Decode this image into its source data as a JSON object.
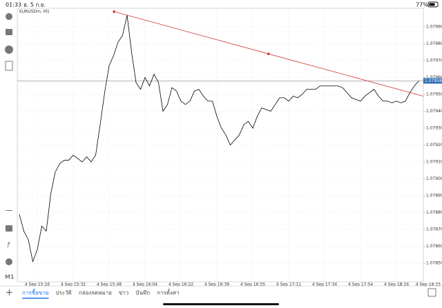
{
  "status_bar": {
    "time": "01:33",
    "date": "อ. 5 ก.ย.",
    "battery": "77%"
  },
  "chart_data": {
    "type": "line",
    "symbol": "EURUSDm, M1",
    "timeframe": "M1",
    "series": [
      {
        "name": "EURUSDm",
        "color": "#000000",
        "values": [
          1.07879,
          1.07869,
          1.07864,
          1.07851,
          1.07858,
          1.07872,
          1.07869,
          1.07891,
          1.07904,
          1.07909,
          1.07911,
          1.07911,
          1.07914,
          1.07912,
          1.0791,
          1.07913,
          1.0791,
          1.07914,
          1.07932,
          1.07951,
          1.07967,
          1.07973,
          1.07981,
          1.07985,
          1.07997,
          1.07975,
          1.07957,
          1.07953,
          1.0796,
          1.07955,
          1.07962,
          1.07957,
          1.0794,
          1.07944,
          1.07954,
          1.07952,
          1.07946,
          1.07944,
          1.07946,
          1.07952,
          1.07953,
          1.07949,
          1.07946,
          1.07946,
          1.07937,
          1.0793,
          1.07926,
          1.0792,
          1.07923,
          1.07926,
          1.07932,
          1.07934,
          1.0793,
          1.07937,
          1.07942,
          1.07941,
          1.0794,
          1.07944,
          1.07948,
          1.07948,
          1.07946,
          1.07949,
          1.07948,
          1.0795,
          1.07953,
          1.07953,
          1.07953,
          1.07955,
          1.07955,
          1.07955,
          1.07955,
          1.07955,
          1.07954,
          1.07951,
          1.07948,
          1.07947,
          1.07946,
          1.07949,
          1.07951,
          1.07953,
          1.07949,
          1.07946,
          1.07946,
          1.07945,
          1.07946,
          1.07945,
          1.07946,
          1.07951,
          1.07955,
          1.07958
        ]
      }
    ],
    "xlim": [
      0,
      90
    ],
    "xticks": [
      {
        "value": 4,
        "label": "4 Sep 15:16"
      },
      {
        "value": 12,
        "label": "4 Sep 15:32"
      },
      {
        "value": 20,
        "label": "4 Sep 15:48"
      },
      {
        "value": 28,
        "label": "4 Sep 16:04"
      },
      {
        "value": 36,
        "label": "4 Sep 16:22"
      },
      {
        "value": 44,
        "label": "4 Sep 16:39"
      },
      {
        "value": 52,
        "label": "4 Sep 16:55"
      },
      {
        "value": 60,
        "label": "4 Sep 17:11"
      },
      {
        "value": 68,
        "label": "4 Sep 17:34"
      },
      {
        "value": 76,
        "label": "4 Sep 17:54"
      },
      {
        "value": 84,
        "label": "4 Sep 18:16"
      },
      {
        "value": 92,
        "label": "4 Sep 18:33"
      }
    ],
    "ylim": [
      1.07839,
      1.08001
    ],
    "yticks": [
      {
        "value": 1.0799,
        "label": "1.07990"
      },
      {
        "value": 1.0798,
        "label": "1.07980"
      },
      {
        "value": 1.0797,
        "label": "1.07970"
      },
      {
        "value": 1.0796,
        "label": "1.07960"
      },
      {
        "value": 1.0795,
        "label": "1.07950"
      },
      {
        "value": 1.0794,
        "label": "1.07940"
      },
      {
        "value": 1.0793,
        "label": "1.07930"
      },
      {
        "value": 1.0792,
        "label": "1.07920"
      },
      {
        "value": 1.0791,
        "label": "1.07910"
      },
      {
        "value": 1.079,
        "label": "1.07900"
      },
      {
        "value": 1.0789,
        "label": "1.07890"
      },
      {
        "value": 1.0788,
        "label": "1.07880"
      },
      {
        "value": 1.0787,
        "label": "1.07870"
      },
      {
        "value": 1.0786,
        "label": "1.07860"
      },
      {
        "value": 1.0785,
        "label": "1.07850"
      }
    ],
    "grid": true,
    "current_price": 1.07958,
    "current_price_color": "#2f6fb5",
    "trendline": {
      "color": "#d32f2f",
      "points": [
        {
          "x": 21.1,
          "y": 1.07999
        },
        {
          "x": 55.5,
          "y": 1.07974
        }
      ]
    }
  },
  "tabs": [
    "การซื้อขาย",
    "ประวัติ",
    "กล่องจดหมาย",
    "ข่าว",
    "บันทึก",
    "การตั้งค่า"
  ]
}
